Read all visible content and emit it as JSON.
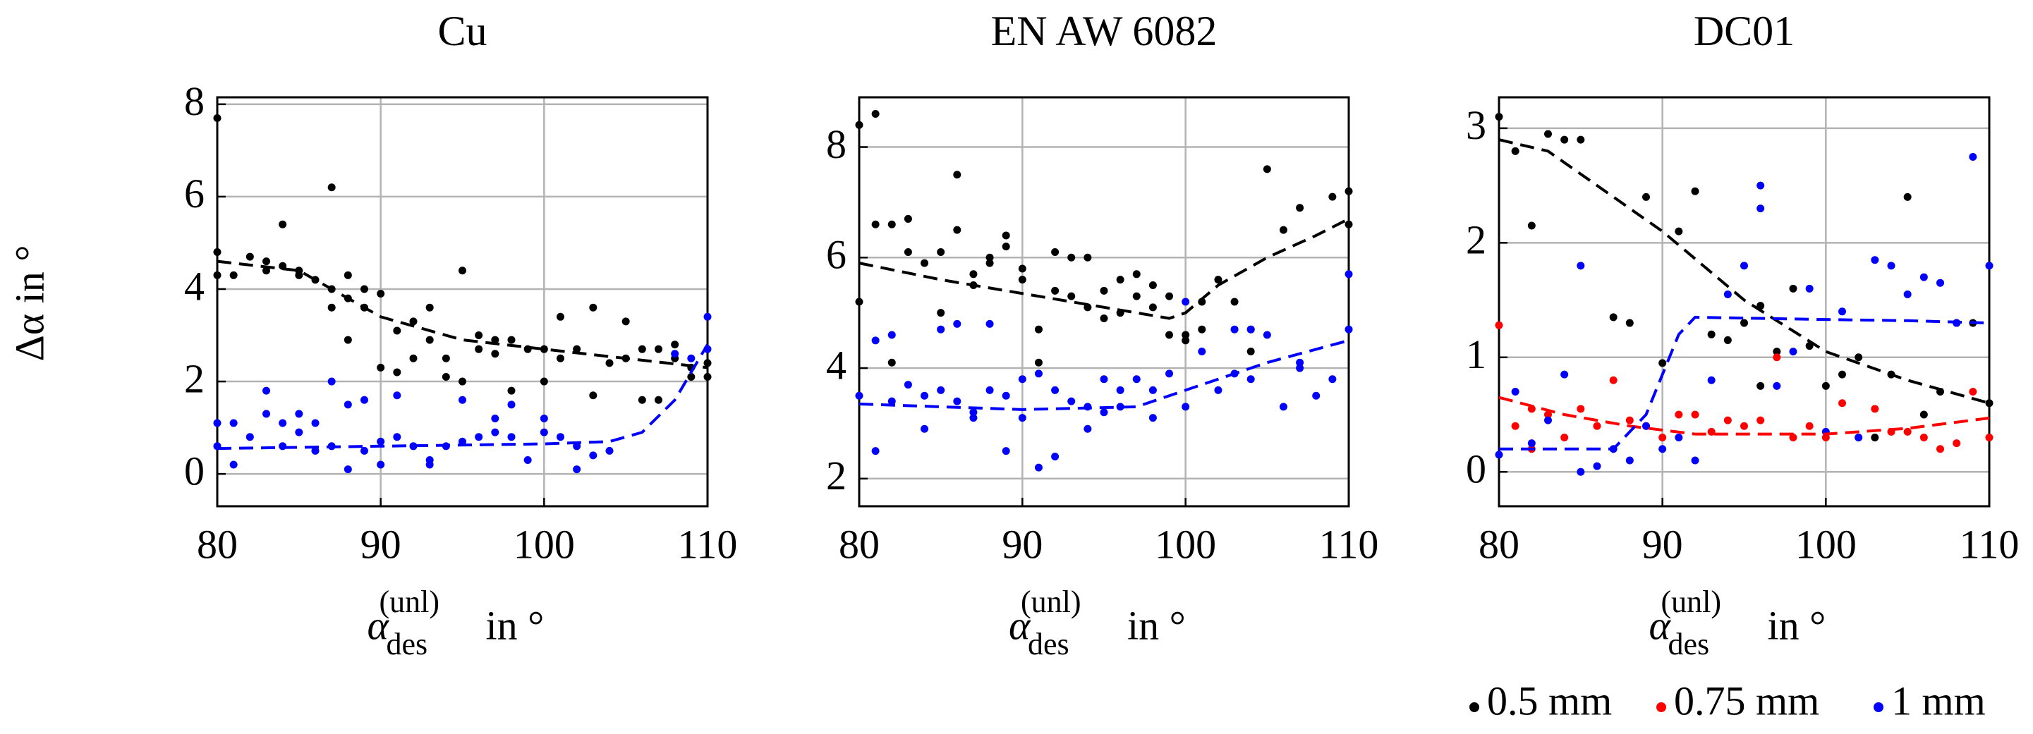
{
  "chart_data": [
    {
      "type": "scatter",
      "title": "Cu",
      "ylabel": "Δα in °",
      "xlabel": {
        "symbol": "α",
        "sub": "des",
        "sup": "(unl)",
        "unit": "in °"
      },
      "xlim": [
        80,
        110
      ],
      "xticks": [
        80,
        90,
        100,
        110
      ],
      "ylim": [
        -0.7,
        8.15
      ],
      "yticks": [
        0,
        2,
        4,
        6,
        8
      ],
      "grid": true,
      "series": [
        {
          "color": "#000000",
          "style": "dots",
          "x": [
            80,
            80,
            80,
            81,
            82,
            83,
            83,
            84,
            84,
            85,
            85,
            86,
            87,
            87,
            87,
            88,
            88,
            88,
            89,
            89,
            90,
            90,
            91,
            91,
            92,
            92,
            93,
            93,
            94,
            94,
            95,
            95,
            96,
            96,
            97,
            97,
            98,
            98,
            99,
            100,
            100,
            101,
            101,
            102,
            103,
            103,
            104,
            105,
            105,
            106,
            106,
            107,
            107,
            108,
            108,
            109,
            109,
            110,
            110
          ],
          "values": [
            7.7,
            4.8,
            4.3,
            4.3,
            4.7,
            4.6,
            4.4,
            5.4,
            4.5,
            4.4,
            4.3,
            4.2,
            6.2,
            4.0,
            3.6,
            4.3,
            3.8,
            2.9,
            4.0,
            3.6,
            3.9,
            2.3,
            3.1,
            2.2,
            3.3,
            2.5,
            3.6,
            2.9,
            2.5,
            2.1,
            4.4,
            2.0,
            3.0,
            2.7,
            2.9,
            2.6,
            2.9,
            1.8,
            2.7,
            2.7,
            2.0,
            3.4,
            2.5,
            2.7,
            3.6,
            1.7,
            2.4,
            3.3,
            2.5,
            2.7,
            1.6,
            2.7,
            1.6,
            2.8,
            2.5,
            2.3,
            2.1,
            2.4,
            2.1
          ]
        },
        {
          "color": "#0000ff",
          "style": "dots",
          "x": [
            80,
            80,
            81,
            81,
            82,
            83,
            83,
            84,
            84,
            85,
            85,
            86,
            86,
            87,
            87,
            88,
            88,
            89,
            89,
            90,
            90,
            91,
            91,
            92,
            93,
            93,
            94,
            95,
            95,
            96,
            97,
            97,
            98,
            98,
            99,
            100,
            100,
            101,
            102,
            102,
            103,
            104,
            108,
            109,
            110,
            110
          ],
          "values": [
            1.1,
            0.6,
            1.1,
            0.2,
            0.8,
            1.8,
            1.3,
            0.6,
            1.1,
            0.9,
            1.3,
            0.5,
            1.1,
            2.0,
            0.6,
            1.5,
            0.1,
            1.6,
            0.5,
            0.7,
            0.2,
            1.7,
            0.8,
            0.6,
            0.3,
            0.2,
            0.6,
            1.6,
            0.7,
            0.8,
            1.2,
            0.9,
            1.5,
            0.8,
            0.3,
            1.2,
            0.9,
            0.8,
            0.6,
            0.1,
            0.4,
            0.5,
            2.6,
            2.5,
            3.4,
            2.7
          ]
        },
        {
          "color": "#000000",
          "style": "dashed",
          "x": [
            80,
            85,
            90,
            95,
            100,
            105,
            110
          ],
          "values": [
            4.6,
            4.4,
            3.4,
            2.9,
            2.7,
            2.5,
            2.3
          ]
        },
        {
          "color": "#0000ff",
          "style": "dashed",
          "x": [
            80,
            90,
            100,
            104,
            106,
            108,
            110
          ],
          "values": [
            0.55,
            0.6,
            0.65,
            0.7,
            0.9,
            1.6,
            2.8
          ]
        }
      ]
    },
    {
      "type": "scatter",
      "title": "EN AW 6082",
      "xlabel": {
        "symbol": "α",
        "sub": "des",
        "sup": "(unl)",
        "unit": "in °"
      },
      "xlim": [
        80,
        110
      ],
      "xticks": [
        80,
        90,
        100,
        110
      ],
      "ylim": [
        1.5,
        8.9
      ],
      "yticks": [
        2,
        4,
        6,
        8
      ],
      "grid": true,
      "series": [
        {
          "color": "#000000",
          "style": "dots",
          "x": [
            80,
            80,
            81,
            81,
            82,
            82,
            83,
            83,
            84,
            85,
            85,
            86,
            86,
            87,
            87,
            88,
            88,
            89,
            89,
            90,
            90,
            91,
            91,
            92,
            92,
            93,
            93,
            94,
            94,
            95,
            95,
            96,
            96,
            97,
            97,
            98,
            98,
            99,
            99,
            100,
            100,
            101,
            101,
            102,
            103,
            104,
            104,
            105,
            106,
            107,
            109,
            110,
            110
          ],
          "values": [
            8.4,
            5.2,
            8.6,
            6.6,
            6.6,
            4.1,
            6.7,
            6.1,
            5.9,
            6.1,
            5.0,
            7.5,
            6.5,
            5.7,
            5.5,
            6.0,
            5.9,
            6.4,
            6.2,
            5.8,
            5.6,
            4.7,
            4.1,
            6.1,
            5.4,
            6.0,
            5.3,
            6.0,
            5.1,
            5.4,
            4.9,
            5.6,
            5.0,
            5.7,
            5.3,
            5.5,
            5.1,
            5.3,
            4.6,
            4.5,
            4.6,
            5.2,
            4.7,
            5.6,
            5.2,
            4.7,
            4.3,
            7.6,
            6.5,
            6.9,
            7.1,
            7.2,
            6.6
          ]
        },
        {
          "color": "#0000ff",
          "style": "dots",
          "x": [
            80,
            81,
            81,
            82,
            82,
            83,
            84,
            84,
            85,
            85,
            86,
            86,
            87,
            87,
            88,
            88,
            89,
            89,
            90,
            90,
            91,
            91,
            92,
            92,
            93,
            94,
            94,
            95,
            95,
            96,
            96,
            97,
            98,
            98,
            99,
            100,
            100,
            101,
            102,
            103,
            103,
            104,
            104,
            105,
            106,
            107,
            107,
            108,
            109,
            110,
            110
          ],
          "values": [
            3.5,
            4.5,
            2.5,
            4.6,
            3.4,
            3.7,
            2.9,
            3.5,
            4.7,
            3.6,
            3.4,
            4.8,
            3.2,
            3.1,
            4.8,
            3.6,
            2.5,
            3.5,
            3.8,
            3.1,
            2.2,
            3.9,
            2.4,
            3.6,
            3.4,
            2.9,
            3.3,
            3.8,
            3.2,
            3.6,
            3.3,
            3.8,
            3.1,
            3.6,
            3.9,
            5.2,
            3.3,
            4.3,
            3.6,
            3.9,
            4.7,
            4.7,
            3.8,
            4.6,
            3.3,
            4.1,
            4.0,
            3.5,
            3.8,
            5.7,
            4.7
          ]
        },
        {
          "color": "#000000",
          "style": "dashed",
          "x": [
            80,
            85,
            90,
            95,
            99,
            100,
            102,
            105,
            108,
            110
          ],
          "values": [
            5.9,
            5.6,
            5.35,
            5.1,
            4.9,
            5.0,
            5.5,
            6.0,
            6.4,
            6.7
          ]
        },
        {
          "color": "#0000ff",
          "style": "dashed",
          "x": [
            80,
            90,
            97,
            100,
            105,
            110
          ],
          "values": [
            3.35,
            3.25,
            3.3,
            3.6,
            4.1,
            4.5
          ]
        }
      ]
    },
    {
      "type": "scatter",
      "title": "DC01",
      "xlabel": {
        "symbol": "α",
        "sub": "des",
        "sup": "(unl)",
        "unit": "in °"
      },
      "xlim": [
        80,
        110
      ],
      "xticks": [
        80,
        90,
        100,
        110
      ],
      "ylim": [
        -0.3,
        3.27
      ],
      "yticks": [
        0,
        1,
        2,
        3
      ],
      "grid": true,
      "series": [
        {
          "color": "#000000",
          "style": "dots",
          "x": [
            80,
            81,
            82,
            83,
            84,
            85,
            87,
            88,
            89,
            90,
            91,
            92,
            93,
            94,
            95,
            96,
            96,
            97,
            98,
            99,
            100,
            101,
            102,
            103,
            104,
            105,
            106,
            107,
            108,
            109,
            110
          ],
          "values": [
            3.1,
            2.8,
            2.15,
            2.95,
            2.9,
            2.9,
            1.35,
            1.3,
            2.4,
            0.95,
            2.1,
            2.45,
            1.2,
            1.15,
            1.3,
            0.75,
            1.45,
            1.05,
            1.6,
            1.1,
            0.75,
            0.85,
            1.0,
            0.3,
            0.85,
            2.4,
            0.5,
            0.7,
            1.3,
            1.3,
            0.6
          ]
        },
        {
          "color": "#ff0000",
          "style": "dots",
          "x": [
            80,
            81,
            82,
            82,
            83,
            84,
            85,
            86,
            87,
            88,
            89,
            90,
            91,
            92,
            93,
            94,
            95,
            96,
            97,
            98,
            99,
            100,
            101,
            102,
            103,
            104,
            105,
            106,
            107,
            108,
            109,
            110
          ],
          "values": [
            1.28,
            0.4,
            0.55,
            0.2,
            0.5,
            0.3,
            0.55,
            0.4,
            0.8,
            0.45,
            0.4,
            0.3,
            0.5,
            0.5,
            0.35,
            0.45,
            0.4,
            0.45,
            1.0,
            0.3,
            0.4,
            0.3,
            0.6,
            0.3,
            0.55,
            0.35,
            0.35,
            0.3,
            0.2,
            0.25,
            0.7,
            0.3
          ]
        },
        {
          "color": "#0000ff",
          "style": "dots",
          "x": [
            80,
            81,
            82,
            83,
            84,
            85,
            85,
            86,
            87,
            88,
            89,
            90,
            91,
            92,
            93,
            94,
            95,
            96,
            96,
            97,
            98,
            99,
            100,
            101,
            102,
            103,
            104,
            105,
            106,
            107,
            108,
            109,
            110
          ],
          "values": [
            0.15,
            0.7,
            0.25,
            0.45,
            0.85,
            1.8,
            0.0,
            0.05,
            0.2,
            0.1,
            0.4,
            0.2,
            0.3,
            0.1,
            0.8,
            1.55,
            1.8,
            2.5,
            2.3,
            0.75,
            1.05,
            1.6,
            0.35,
            1.4,
            0.3,
            1.85,
            1.8,
            1.55,
            1.7,
            1.65,
            1.3,
            2.75,
            1.8
          ]
        },
        {
          "color": "#000000",
          "style": "dashed",
          "x": [
            80,
            83,
            86,
            90,
            95,
            100,
            105,
            110
          ],
          "values": [
            2.9,
            2.8,
            2.5,
            2.1,
            1.5,
            1.05,
            0.8,
            0.6
          ]
        },
        {
          "color": "#ff0000",
          "style": "dashed",
          "x": [
            80,
            84,
            88,
            92,
            100,
            105,
            110
          ],
          "values": [
            0.65,
            0.5,
            0.4,
            0.33,
            0.33,
            0.38,
            0.47
          ]
        },
        {
          "color": "#0000ff",
          "style": "dashed",
          "x": [
            80,
            87,
            89,
            91,
            92,
            100,
            105,
            110
          ],
          "values": [
            0.2,
            0.2,
            0.5,
            1.2,
            1.35,
            1.33,
            1.32,
            1.3
          ]
        }
      ]
    }
  ],
  "legend": {
    "position": "bottom-right",
    "entries": [
      {
        "name": "0.5 mm",
        "color": "#000000"
      },
      {
        "name": "0.75 mm",
        "color": "#ff0000"
      },
      {
        "name": "1 mm",
        "color": "#0000ff"
      }
    ]
  }
}
